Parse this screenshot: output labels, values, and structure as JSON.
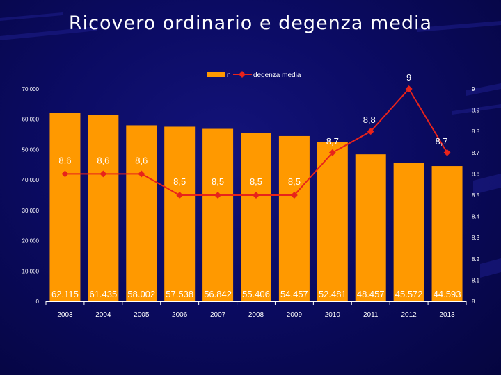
{
  "slide": {
    "title": "Ricovero ordinario e degenza media"
  },
  "colors": {
    "bar": "#ff9900",
    "line": "#e8231b",
    "text": "#ffffff",
    "background": "#0b0b63"
  },
  "chart_data": {
    "type": "bar",
    "categories": [
      "2003",
      "2004",
      "2005",
      "2006",
      "2007",
      "2008",
      "2009",
      "2010",
      "2011",
      "2012",
      "2013"
    ],
    "series": [
      {
        "name": "n",
        "type": "bar",
        "axis": "left",
        "values": [
          62115,
          61435,
          58002,
          57538,
          56842,
          55406,
          54457,
          52481,
          48457,
          45572,
          44593
        ],
        "labels": [
          "62.115",
          "61.435",
          "58.002",
          "57.538",
          "56.842",
          "55.406",
          "54.457",
          "52.481",
          "48.457",
          "45.572",
          "44.593"
        ]
      },
      {
        "name": "degenza media",
        "type": "line",
        "axis": "right",
        "values": [
          8.6,
          8.6,
          8.6,
          8.5,
          8.5,
          8.5,
          8.5,
          8.7,
          8.8,
          9,
          8.7
        ],
        "labels": [
          "8,6",
          "8,6",
          "8,6",
          "8,5",
          "8,5",
          "8,5",
          "8,5",
          "8,7",
          "8,8",
          "9",
          "8,7"
        ]
      }
    ],
    "y_left": {
      "ylim": [
        0,
        70000
      ],
      "ticks": [
        0,
        10000,
        20000,
        30000,
        40000,
        50000,
        60000,
        70000
      ],
      "tick_labels": [
        "0",
        "10.000",
        "20.000",
        "30.000",
        "40.000",
        "50.000",
        "60.000",
        "70.000"
      ]
    },
    "y_right": {
      "ylim": [
        8,
        9
      ],
      "ticks": [
        8,
        8.1,
        8.2,
        8.3,
        8.4,
        8.5,
        8.6,
        8.7,
        8.8,
        8.9,
        9
      ],
      "tick_labels": [
        "8",
        "8.1",
        "8.2",
        "8.3",
        "8.4",
        "8.5",
        "8.6",
        "8.7",
        "8.8",
        "8.9",
        "9"
      ]
    },
    "legend": {
      "position": "top-center",
      "entries": [
        "n",
        "degenza media"
      ]
    },
    "grid": false
  }
}
